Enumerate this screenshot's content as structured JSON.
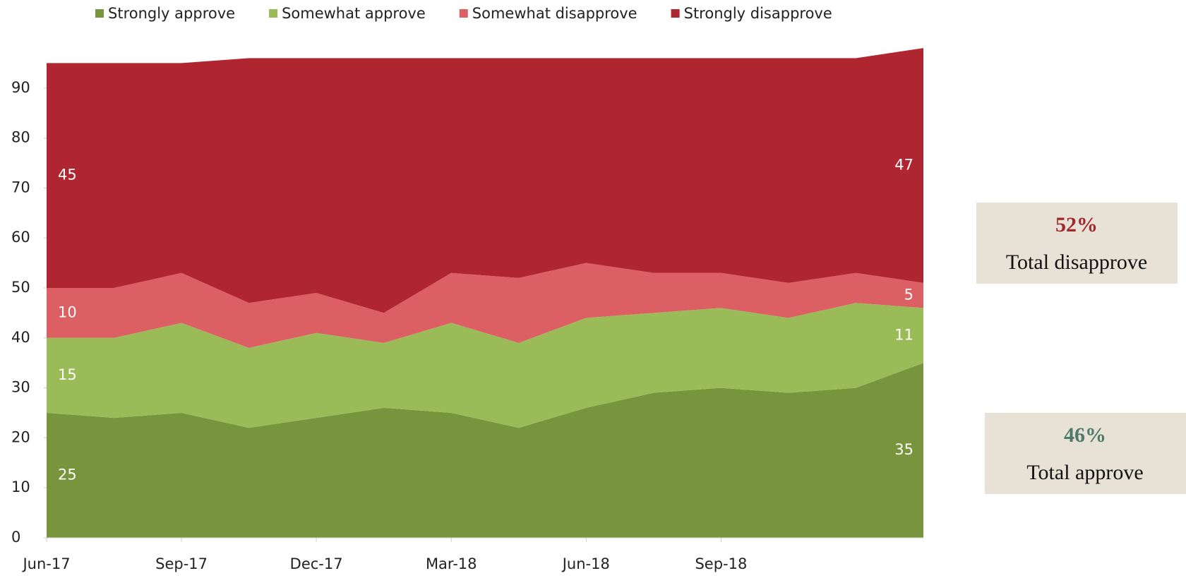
{
  "chart_data": {
    "type": "stacked_area",
    "categories": [
      "Jun-17",
      null,
      "Sep-17",
      null,
      "Dec-17",
      null,
      "Mar-18",
      null,
      "Jun-18",
      null,
      "Sep-18",
      null,
      null,
      null
    ],
    "series": [
      {
        "name": "Strongly approve",
        "color": "#78943c",
        "values": [
          25,
          24,
          25,
          22,
          24,
          26,
          25,
          22,
          26,
          29,
          30,
          29,
          30,
          35
        ]
      },
      {
        "name": "Somewhat approve",
        "color": "#9bbb59",
        "values": [
          15,
          16,
          18,
          16,
          17,
          13,
          18,
          17,
          18,
          16,
          16,
          15,
          17,
          11
        ]
      },
      {
        "name": "Somewhat disapprove",
        "color": "#dc5f64",
        "values": [
          10,
          10,
          10,
          9,
          8,
          6,
          10,
          13,
          11,
          8,
          7,
          7,
          6,
          5
        ]
      },
      {
        "name": "Strongly disapprove",
        "color": "#b02630",
        "values": [
          45,
          45,
          42,
          49,
          47,
          51,
          43,
          44,
          41,
          43,
          43,
          45,
          43,
          47
        ]
      }
    ],
    "ylim": [
      0,
      100
    ],
    "yticks": [
      0,
      10,
      20,
      30,
      40,
      50,
      60,
      70,
      80,
      90
    ],
    "annotations": [
      {
        "value": "52%",
        "text": "Total disapprove",
        "color": "#a0282c"
      },
      {
        "value": "46%",
        "text": "Total approve",
        "color": "#4e7a6b"
      }
    ]
  }
}
